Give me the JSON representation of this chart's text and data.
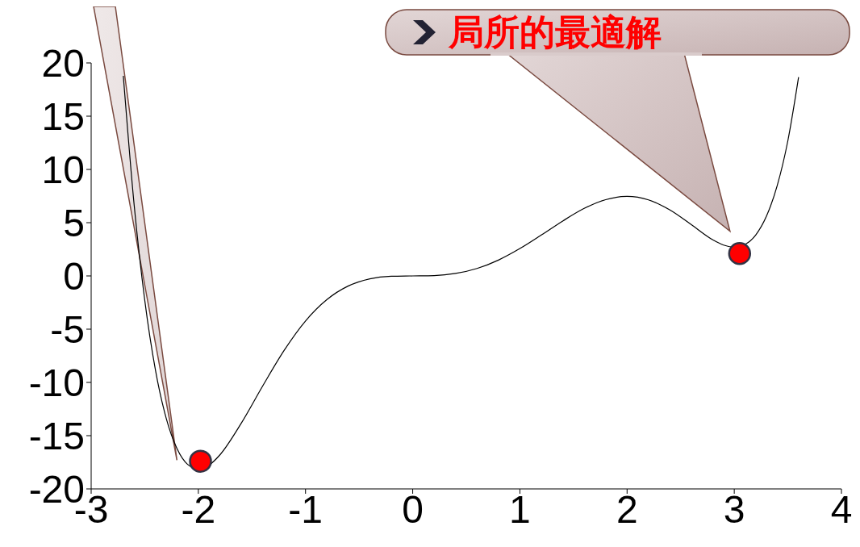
{
  "chart_data": {
    "type": "line",
    "annotations": [
      "局所的最適解"
    ],
    "xlim": [
      -3,
      4
    ],
    "xticks": [
      -3,
      -2,
      -1,
      0,
      1,
      2,
      3,
      4
    ],
    "ylim": [
      -20,
      20
    ],
    "yticks": [
      -20,
      -15,
      -10,
      -5,
      0,
      5,
      10,
      15,
      20
    ],
    "grid": false,
    "legend": false,
    "series": [
      {
        "color": "#000000",
        "marker": "none",
        "x": [
          -2.7,
          -2.6,
          -2.5,
          -2.4,
          -2.3,
          -2.2,
          -2.1,
          -2.0,
          -1.9,
          -1.8,
          -1.6,
          -1.4,
          -1.2,
          -1.0,
          -0.8,
          -0.6,
          -0.4,
          -0.2,
          0,
          0.2,
          0.4,
          0.6,
          0.8,
          1.0,
          1.2,
          1.4,
          1.6,
          1.8,
          2.0,
          2.2,
          2.4,
          2.6,
          2.8,
          2.9,
          3.0,
          3.1,
          3.2,
          3.3,
          3.4,
          3.5,
          3.6
        ],
        "values": [
          18.79,
          6.78,
          -2.28,
          -8.85,
          -13.36,
          -16.2,
          -17.7,
          -18.13,
          -17.77,
          -16.82,
          -13.84,
          -10.34,
          -7.0,
          -4.23,
          -2.22,
          -0.94,
          -0.27,
          -0.03,
          0,
          0.03,
          0.23,
          0.7,
          1.49,
          2.57,
          3.84,
          5.16,
          6.34,
          7.16,
          7.47,
          7.14,
          6.19,
          4.81,
          3.39,
          2.9,
          2.7,
          2.96,
          3.84,
          5.6,
          8.45,
          12.69,
          18.66
        ]
      },
      {
        "type": "scatter",
        "color": "#ff0000",
        "marker": "circle",
        "x": [
          -1.98,
          3.05
        ],
        "values": [
          -17.4,
          2.1
        ]
      }
    ]
  }
}
